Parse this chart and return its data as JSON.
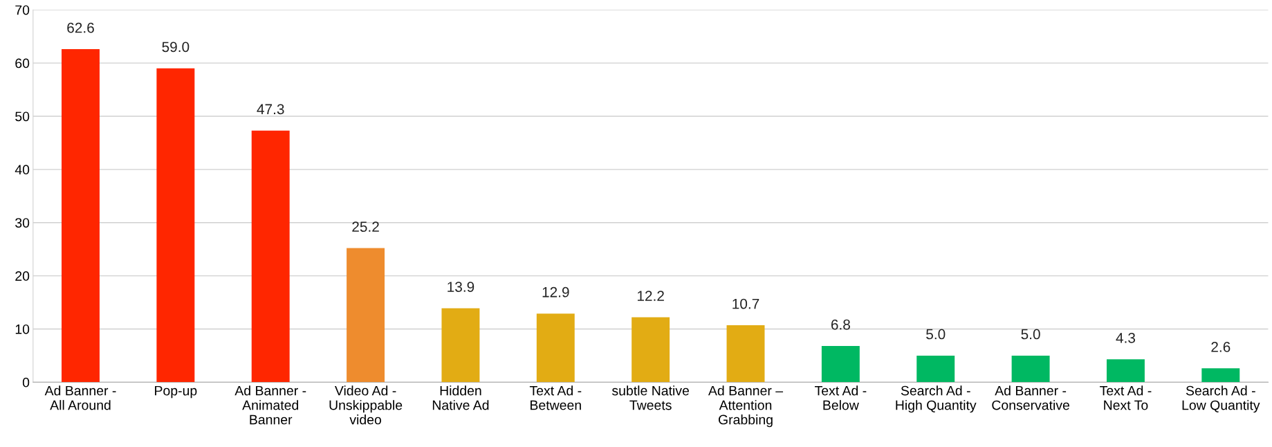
{
  "chart_data": {
    "type": "bar",
    "categories": [
      "Ad Banner -\nAll Around",
      "Pop-up",
      "Ad Banner -\nAnimated\nBanner",
      "Video Ad -\nUnskippable\nvideo",
      "Hidden\nNative Ad",
      "Text Ad -\nBetween",
      "subtle Native\nTweets",
      "Ad Banner –\nAttention\nGrabbing",
      "Text Ad -\nBelow",
      "Search Ad -\nHigh Quantity",
      "Ad Banner -\nConservative",
      "Text Ad -\nNext To",
      "Search Ad -\nLow Quantity"
    ],
    "values": [
      62.6,
      59.0,
      47.3,
      25.2,
      13.9,
      12.9,
      12.2,
      10.7,
      6.8,
      5.0,
      5.0,
      4.3,
      2.6
    ],
    "value_labels": [
      "62.6",
      "59.0",
      "47.3",
      "25.2",
      "13.9",
      "12.9",
      "12.2",
      "10.7",
      "6.8",
      "5.0",
      "5.0",
      "4.3",
      "2.6"
    ],
    "colors": [
      "#ff2600",
      "#ff2600",
      "#ff2600",
      "#ee8c2e",
      "#e2ac14",
      "#e2ac14",
      "#e2ac14",
      "#e2ac14",
      "#00b862",
      "#00b862",
      "#00b862",
      "#00b862",
      "#00b862"
    ],
    "ylim": [
      0,
      70
    ],
    "yticks": [
      0,
      10,
      20,
      30,
      40,
      50,
      60,
      70
    ],
    "grid": "y",
    "legend": false
  }
}
